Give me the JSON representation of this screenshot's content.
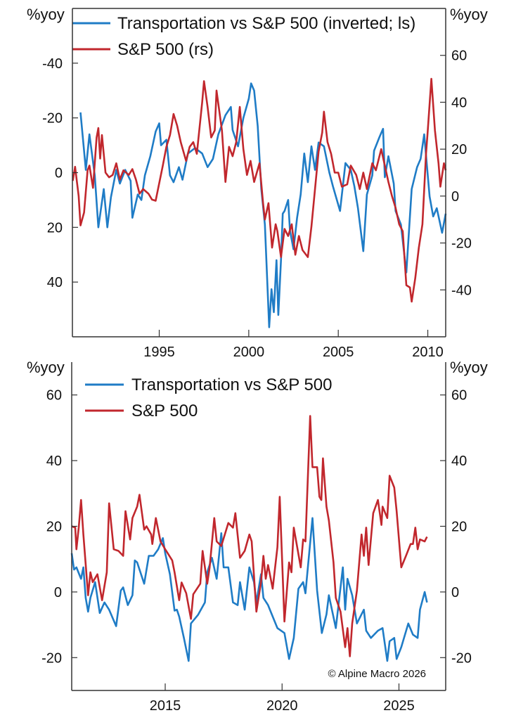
{
  "colors": {
    "blue": "#1f7cc6",
    "red": "#c1272d",
    "axis": "#333333"
  },
  "copyright": "© Alpine Macro 2026",
  "chart_data": [
    {
      "type": "line",
      "left_unit": "%yoy",
      "right_unit": "%yoy",
      "xlim": [
        1990.15,
        2011
      ],
      "x_ticks": [
        1995,
        2000,
        2005,
        2010
      ],
      "x_tick_labels": [
        "1995",
        "2000",
        "2005",
        "2010"
      ],
      "left_axis": {
        "ylim": [
          -60,
          60
        ],
        "inverted": true,
        "ticks": [
          -40,
          -20,
          0,
          20,
          40
        ],
        "tick_labels": [
          "-40",
          "-20",
          "0",
          "20",
          "40"
        ]
      },
      "right_axis": {
        "ylim": [
          -60,
          80
        ],
        "inverted": false,
        "ticks": [
          -40,
          -20,
          0,
          20,
          40,
          60
        ],
        "tick_labels": [
          "-40",
          "-20",
          "0",
          "20",
          "40",
          "60"
        ]
      },
      "grid": false,
      "box_top": true,
      "legend_placement": "top-left",
      "series": [
        {
          "name": "Transportation vs S&P 500 (inverted; ls)",
          "color": "blue",
          "axis": "left",
          "x": [
            1990.6,
            1990.9,
            1991.1,
            1991.4,
            1991.6,
            1991.9,
            1992.1,
            1992.3,
            1992.6,
            1992.8,
            1993.1,
            1993.4,
            1993.5,
            1993.8,
            1994.0,
            1994.2,
            1994.5,
            1994.8,
            1995.0,
            1995.1,
            1995.4,
            1995.6,
            1995.8,
            1996.1,
            1996.3,
            1996.6,
            1997.0,
            1997.4,
            1997.7,
            1998.0,
            1998.3,
            1998.7,
            1999.0,
            1999.1,
            1999.4,
            1999.7,
            2000.0,
            2000.13,
            2000.3,
            2000.5,
            2000.7,
            2000.9,
            2001.14,
            2001.27,
            2001.4,
            2001.55,
            2001.65,
            2001.8,
            2001.9,
            2002.0,
            2002.2,
            2002.3,
            2002.5,
            2002.7,
            2002.9,
            2003.1,
            2003.3,
            2003.5,
            2003.7,
            2003.9,
            2004.2,
            2004.5,
            2004.7,
            2005.1,
            2005.4,
            2005.7,
            2005.9,
            2006.1,
            2006.4,
            2006.6,
            2006.9,
            2007.0,
            2007.3,
            2007.5,
            2007.6,
            2007.8,
            2008.1,
            2008.2,
            2008.5,
            2008.8,
            2009.1,
            2009.4,
            2009.6,
            2009.8,
            2010.1,
            2010.3,
            2010.5,
            2010.8,
            2011.0
          ],
          "y": [
            -22,
            -1,
            -14,
            1,
            20,
            6,
            20,
            9,
            -1,
            4,
            -1,
            3,
            16.5,
            8,
            10,
            1,
            -6,
            -15,
            -18,
            -10,
            -12,
            1,
            3.5,
            -2,
            2.6,
            -7,
            -9,
            -7,
            -2,
            -5,
            -14,
            -21,
            -24,
            -15.6,
            -9.6,
            -20,
            -27,
            -32.6,
            -30,
            -17,
            6,
            19,
            56.5,
            42.6,
            51,
            32,
            52,
            32,
            15,
            14,
            10,
            21,
            28,
            16.5,
            8,
            -7,
            3.5,
            -9.6,
            -1,
            -11,
            -9.6,
            0,
            5,
            14,
            -3.5,
            -1,
            5,
            13,
            28.7,
            8,
            1,
            -8,
            -13,
            -16,
            1.7,
            -6,
            4,
            14,
            19,
            36.5,
            6,
            -2,
            -5,
            -14,
            8.7,
            16,
            13,
            22,
            15
          ]
        },
        {
          "name": "S&P 500 (rs)",
          "color": "red",
          "axis": "right",
          "x": [
            1990.17,
            1990.3,
            1990.5,
            1990.6,
            1990.8,
            1991.0,
            1991.1,
            1991.3,
            1991.5,
            1991.6,
            1991.7,
            1991.8,
            1992.0,
            1992.2,
            1992.4,
            1992.6,
            1992.8,
            1993.0,
            1993.3,
            1993.5,
            1993.7,
            1993.9,
            1994.1,
            1994.4,
            1994.6,
            1994.8,
            1995.2,
            1995.4,
            1995.6,
            1995.8,
            1996.0,
            1996.2,
            1996.5,
            1996.7,
            1996.9,
            1997.1,
            1997.4,
            1997.5,
            1997.7,
            1997.9,
            1998.1,
            1998.2,
            1998.5,
            1998.7,
            1998.9,
            1999.1,
            1999.3,
            1999.5,
            1999.7,
            1999.9,
            2000.1,
            2000.3,
            2000.6,
            2000.8,
            2000.9,
            2001.1,
            2001.3,
            2001.5,
            2001.6,
            2001.8,
            2002.0,
            2002.2,
            2002.4,
            2002.6,
            2002.8,
            2003.0,
            2003.3,
            2003.5,
            2003.7,
            2003.9,
            2004.1,
            2004.2,
            2004.4,
            2004.6,
            2004.8,
            2005.0,
            2005.2,
            2005.5,
            2005.7,
            2006.0,
            2006.2,
            2006.4,
            2006.6,
            2006.9,
            2007.1,
            2007.4,
            2007.6,
            2007.8,
            2008.0,
            2008.2,
            2008.4,
            2008.6,
            2008.8,
            2009.0,
            2009.1,
            2009.3,
            2009.5,
            2009.7,
            2009.9,
            2010.0,
            2010.2,
            2010.4,
            2010.6,
            2010.7,
            2010.9,
            2011.0
          ],
          "y": [
            6.5,
            12.5,
            0,
            -12.5,
            -7,
            11,
            13,
            3.5,
            25,
            29,
            16,
            26,
            10,
            8,
            9,
            14,
            7,
            11,
            9,
            11.5,
            7,
            1,
            3,
            1,
            -1.5,
            -2,
            13,
            21,
            26,
            35,
            30,
            23,
            15,
            21,
            23,
            18,
            40,
            49,
            38,
            25,
            28,
            45,
            28,
            6,
            21,
            17,
            23,
            38,
            20,
            9,
            15,
            6,
            14,
            -3,
            -10,
            -3,
            -22,
            -12,
            -15,
            -26,
            -14,
            -17,
            -12,
            -25,
            -17,
            -23,
            -26,
            -13,
            3,
            19,
            27,
            36,
            23,
            18,
            10,
            10,
            4,
            5,
            13,
            9,
            3,
            10,
            3,
            14,
            11,
            20,
            13,
            6,
            0,
            -5,
            -12,
            -15,
            -38,
            -39,
            -45,
            -35,
            -22,
            -12,
            18,
            28,
            50,
            28,
            14,
            4,
            14,
            11
          ]
        }
      ]
    },
    {
      "type": "line",
      "left_unit": "%yoy",
      "right_unit": "%yoy",
      "xlim": [
        2011,
        2027
      ],
      "x_ticks": [
        2015,
        2020,
        2025
      ],
      "x_tick_labels": [
        "2015",
        "2020",
        "2025"
      ],
      "left_axis": {
        "ylim": [
          -30,
          70
        ],
        "inverted": false,
        "ticks": [
          -20,
          0,
          20,
          40,
          60
        ],
        "tick_labels": [
          "-20",
          "0",
          "20",
          "40",
          "60"
        ]
      },
      "right_axis": {
        "ylim": [
          -30,
          70
        ],
        "inverted": false,
        "ticks": [
          -20,
          0,
          20,
          40,
          60
        ],
        "tick_labels": [
          "-20",
          "0",
          "20",
          "40",
          "60"
        ]
      },
      "grid": false,
      "box_top": false,
      "legend_placement": "top-left",
      "series": [
        {
          "name": "Transportation vs S&P 500",
          "color": "blue",
          "axis": "left",
          "x": [
            2011.0,
            2011.1,
            2011.2,
            2011.4,
            2011.5,
            2011.6,
            2011.7,
            2011.8,
            2012.0,
            2012.2,
            2012.4,
            2012.6,
            2012.9,
            2013.1,
            2013.2,
            2013.4,
            2013.6,
            2013.7,
            2013.8,
            2014.1,
            2014.3,
            2014.5,
            2014.7,
            2014.9,
            2015.0,
            2015.2,
            2015.4,
            2015.5,
            2015.6,
            2015.8,
            2016.0,
            2016.1,
            2016.4,
            2016.7,
            2016.8,
            2017.0,
            2017.2,
            2017.4,
            2017.5,
            2017.7,
            2017.9,
            2018.1,
            2018.2,
            2018.4,
            2018.6,
            2018.8,
            2018.9,
            2019.1,
            2019.2,
            2019.4,
            2019.6,
            2019.8,
            2020.1,
            2020.3,
            2020.5,
            2020.7,
            2020.9,
            2021.0,
            2021.3,
            2021.5,
            2021.7,
            2021.9,
            2022.0,
            2022.3,
            2022.6,
            2022.7,
            2022.8,
            2023.0,
            2023.2,
            2023.5,
            2023.6,
            2023.8,
            2024.1,
            2024.3,
            2024.5,
            2024.6,
            2024.8,
            2024.9,
            2025.1,
            2025.4,
            2025.6,
            2025.8,
            2025.9,
            2026.1,
            2026.2
          ],
          "y": [
            11.8,
            6.8,
            7.5,
            4,
            7.5,
            -1.8,
            -6,
            -1.8,
            3,
            -6.4,
            -3.2,
            -5.4,
            -10.4,
            0.4,
            1.4,
            -4,
            -1,
            9.6,
            9,
            2.5,
            11,
            11,
            13,
            16.4,
            11.8,
            5.4,
            -5.7,
            -5.4,
            -7.5,
            -14,
            -21,
            -9.6,
            -7,
            -3.2,
            6,
            10.4,
            4,
            17.9,
            7.5,
            7.5,
            -3.2,
            -4,
            3,
            -5.4,
            7.5,
            3,
            -3.2,
            5.4,
            -1.8,
            -4,
            -7.5,
            -11,
            -12.5,
            -20.4,
            -14,
            1,
            3,
            -0.4,
            22.5,
            0.4,
            -12.5,
            -6.8,
            -1,
            -11,
            7.5,
            -5.4,
            4,
            -1,
            -9.6,
            -5.4,
            -11.8,
            -14,
            -11.8,
            -11,
            -21,
            -15,
            -14,
            -20.4,
            -16.8,
            -9.6,
            -13,
            -14,
            -5.4,
            0,
            -3.2
          ]
        },
        {
          "name": "S&P 500",
          "color": "red",
          "axis": "right",
          "x": [
            2011.0,
            2011.15,
            2011.2,
            2011.3,
            2011.4,
            2011.5,
            2011.7,
            2011.8,
            2011.9,
            2012.1,
            2012.3,
            2012.5,
            2012.6,
            2012.8,
            2013.0,
            2013.2,
            2013.3,
            2013.5,
            2013.6,
            2013.8,
            2013.9,
            2014.1,
            2014.2,
            2014.4,
            2014.45,
            2014.6,
            2014.8,
            2015.0,
            2015.3,
            2015.4,
            2015.6,
            2015.7,
            2015.9,
            2016.1,
            2016.2,
            2016.5,
            2016.6,
            2016.8,
            2016.9,
            2017.1,
            2017.2,
            2017.4,
            2017.7,
            2017.9,
            2018.0,
            2018.2,
            2018.4,
            2018.6,
            2018.7,
            2018.9,
            2019.1,
            2019.2,
            2019.3,
            2019.4,
            2019.6,
            2019.8,
            2019.9,
            2020.1,
            2020.3,
            2020.4,
            2020.5,
            2020.8,
            2020.9,
            2021.0,
            2021.2,
            2021.3,
            2021.5,
            2021.6,
            2021.68,
            2021.75,
            2021.9,
            2022.0,
            2022.2,
            2022.3,
            2022.5,
            2022.7,
            2022.8,
            2022.9,
            2023.0,
            2023.2,
            2023.4,
            2023.5,
            2023.6,
            2023.7,
            2023.9,
            2024.1,
            2024.25,
            2024.3,
            2024.5,
            2024.6,
            2024.8,
            2024.9,
            2025.1,
            2025.3,
            2025.5,
            2025.6,
            2025.7,
            2025.8,
            2025.9,
            2026.1,
            2026.2
          ],
          "y": [
            20,
            19.6,
            13,
            19.6,
            28,
            17.5,
            -1,
            6,
            3,
            5.4,
            -2.5,
            6,
            27,
            13,
            12.5,
            11,
            24.6,
            16,
            22.5,
            26,
            29.6,
            19,
            20,
            17.5,
            14.6,
            22.5,
            15.4,
            13,
            9.6,
            6,
            -2.5,
            2.9,
            -0.4,
            -8.2,
            -0.7,
            2.5,
            12.5,
            2.5,
            7.5,
            22.5,
            15.4,
            14,
            21,
            19.6,
            24,
            10.4,
            12.5,
            17.5,
            15.4,
            -6,
            3,
            11,
            4,
            8.2,
            1,
            13.6,
            29,
            -9,
            9,
            6,
            19.6,
            7.5,
            16,
            15.4,
            53.6,
            38,
            38,
            29,
            28,
            40.7,
            26,
            21.8,
            9,
            -1.8,
            -6,
            -16.8,
            -11,
            -19.6,
            -9.6,
            0.4,
            17.5,
            11,
            19.6,
            8.2,
            24,
            28,
            20.4,
            26,
            22.5,
            35.4,
            31.8,
            24.6,
            7.5,
            11,
            14.6,
            14.6,
            19.6,
            13,
            16,
            15.4,
            16.8
          ]
        }
      ]
    }
  ]
}
